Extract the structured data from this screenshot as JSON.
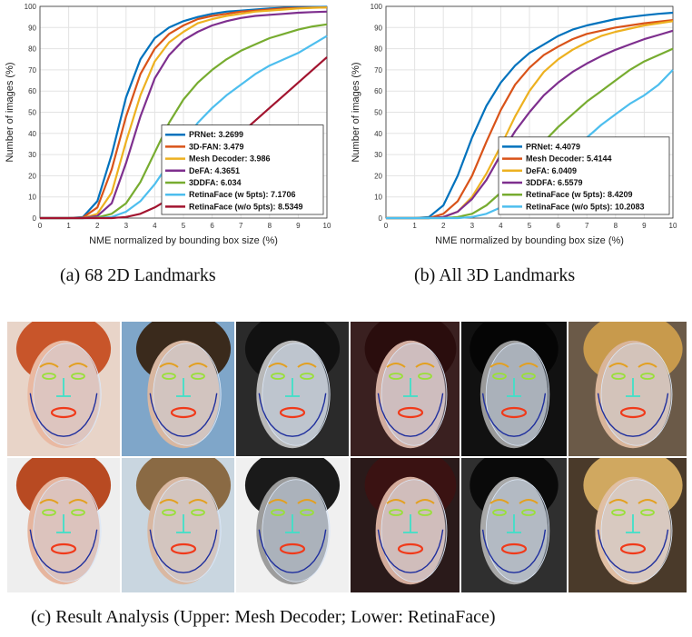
{
  "chart_data": [
    {
      "type": "line",
      "panel": "a",
      "xlabel": "NME normalized by bounding box size (%)",
      "ylabel": "Number of images (%)",
      "xlim": [
        0,
        10
      ],
      "ylim": [
        0,
        100
      ],
      "xticks": [
        "0",
        "1",
        "2",
        "3",
        "4",
        "5",
        "6",
        "7",
        "8",
        "9",
        "10"
      ],
      "yticks": [
        "0",
        "10",
        "20",
        "30",
        "40",
        "50",
        "60",
        "70",
        "80",
        "90",
        "100"
      ],
      "grid": true,
      "legend_position": "bottom-right",
      "x": [
        0,
        0.5,
        1,
        1.5,
        2,
        2.5,
        3,
        3.5,
        4,
        4.5,
        5,
        5.5,
        6,
        6.5,
        7,
        7.5,
        8,
        8.5,
        9,
        9.5,
        10
      ],
      "series": [
        {
          "name": "PRNet: 3.2699",
          "color": "#0072BD",
          "values": [
            0,
            0,
            0,
            0.5,
            8,
            30,
            57,
            75,
            85,
            90,
            93,
            95,
            96.5,
            97.5,
            98,
            98.5,
            99,
            99.3,
            99.5,
            99.7,
            99.8
          ]
        },
        {
          "name": "3D-FAN: 3.479",
          "color": "#D95319",
          "values": [
            0,
            0,
            0,
            0.3,
            5,
            23,
            48,
            68,
            80,
            87,
            91,
            94,
            95.5,
            96.5,
            97.5,
            98,
            98.5,
            99,
            99.2,
            99.4,
            99.5
          ]
        },
        {
          "name": "Mesh Decoder: 3.986",
          "color": "#EDB120",
          "values": [
            0,
            0,
            0,
            0,
            2,
            12,
            36,
            58,
            74,
            83,
            88,
            92,
            94,
            95.5,
            96.5,
            97.5,
            98,
            98.5,
            99,
            99.3,
            99.5
          ]
        },
        {
          "name": "DeFA: 4.3651",
          "color": "#7E2F8E",
          "values": [
            0,
            0,
            0,
            0,
            1,
            7,
            26,
            48,
            66,
            77,
            84,
            88,
            91,
            93,
            94.5,
            95.5,
            96,
            96.5,
            97,
            97.3,
            97.5
          ]
        },
        {
          "name": "3DDFA: 6.034",
          "color": "#77AC30",
          "values": [
            0,
            0,
            0,
            0,
            0.3,
            2,
            7,
            17,
            31,
            45,
            56,
            64,
            70,
            75,
            79,
            82,
            85,
            87,
            89,
            90.5,
            91.5
          ]
        },
        {
          "name": "RetinaFace (w 5pts): 7.1706",
          "color": "#4DBEEE",
          "values": [
            0,
            0,
            0,
            0,
            0,
            0.5,
            3,
            8,
            16,
            26,
            36,
            45,
            52,
            58,
            63,
            68,
            72,
            75,
            78,
            82,
            86
          ]
        },
        {
          "name": "RetinaFace (w/o 5pts): 8.5349",
          "color": "#A2142F",
          "values": [
            0,
            0,
            0,
            0,
            0,
            0,
            0.5,
            2,
            5,
            9,
            14,
            20,
            27,
            33,
            40,
            46,
            52,
            58,
            64,
            70,
            76
          ]
        }
      ]
    },
    {
      "type": "line",
      "panel": "b",
      "xlabel": "NME normalized by bounding box size (%)",
      "ylabel": "Number of images (%)",
      "xlim": [
        0,
        10
      ],
      "ylim": [
        0,
        100
      ],
      "xticks": [
        "0",
        "1",
        "2",
        "3",
        "4",
        "5",
        "6",
        "7",
        "8",
        "9",
        "10"
      ],
      "yticks": [
        "0",
        "10",
        "20",
        "30",
        "40",
        "50",
        "60",
        "70",
        "80",
        "90",
        "100"
      ],
      "grid": true,
      "legend_position": "bottom-right",
      "x": [
        0,
        0.5,
        1,
        1.5,
        2,
        2.5,
        3,
        3.5,
        4,
        4.5,
        5,
        5.5,
        6,
        6.5,
        7,
        7.5,
        8,
        8.5,
        9,
        9.5,
        10
      ],
      "series": [
        {
          "name": "PRNet: 4.4079",
          "color": "#0072BD",
          "values": [
            0,
            0,
            0,
            0.5,
            6,
            20,
            38,
            53,
            64,
            72,
            78,
            82,
            86,
            89,
            91,
            92.5,
            94,
            95,
            95.8,
            96.5,
            97
          ]
        },
        {
          "name": "Mesh Decoder: 5.4144",
          "color": "#D95319",
          "values": [
            0,
            0,
            0,
            0,
            2,
            8,
            20,
            36,
            51,
            63,
            71,
            77,
            81,
            84.5,
            87,
            88.5,
            90,
            91,
            92,
            92.8,
            93.5
          ]
        },
        {
          "name": "DeFA: 6.0409",
          "color": "#EDB120",
          "values": [
            0,
            0,
            0,
            0,
            0.5,
            3,
            10,
            21,
            34,
            48,
            60,
            69,
            75,
            79.5,
            83,
            86,
            88,
            89.5,
            91,
            92,
            93
          ]
        },
        {
          "name": "3DDFA: 6.5579",
          "color": "#7E2F8E",
          "values": [
            0,
            0,
            0,
            0,
            0.5,
            3,
            9,
            18,
            30,
            41,
            50,
            58,
            64,
            69,
            73,
            76.5,
            79.5,
            82,
            84.5,
            86.5,
            88.5
          ]
        },
        {
          "name": "RetinaFace (w 5pts): 8.4209",
          "color": "#77AC30",
          "values": [
            0,
            0,
            0,
            0,
            0,
            0.5,
            2,
            6,
            12,
            20,
            28,
            36,
            43,
            49,
            55,
            60,
            65,
            70,
            74,
            77,
            80
          ]
        },
        {
          "name": "RetinaFace (w/o 5pts): 10.2083",
          "color": "#4DBEEE",
          "values": [
            0,
            0,
            0,
            0,
            0,
            0,
            0.5,
            2,
            5,
            10,
            16,
            22,
            28,
            33,
            38,
            44,
            49,
            54,
            58,
            63,
            70
          ]
        }
      ]
    }
  ],
  "captions": {
    "a": "(a)  68 2D Landmarks",
    "b": "(b)  All 3D Landmarks",
    "c": "(c)  Result Analysis (Upper: Mesh Decoder; Lower: RetinaFace)"
  },
  "faces": [
    {
      "bg": "#e8d4c8",
      "skin": "#e9b9a2",
      "hair": "#c8552a"
    },
    {
      "bg": "#7fa6c9",
      "skin": "#d8b7a1",
      "hair": "#3a2a1c"
    },
    {
      "bg": "#2a2a2a",
      "skin": "#b8b8b8",
      "hair": "#111111"
    },
    {
      "bg": "#3a2020",
      "skin": "#d2ada0",
      "hair": "#2a0d0d"
    },
    {
      "bg": "#111111",
      "skin": "#9a9a9a",
      "hair": "#050505"
    },
    {
      "bg": "#6b5a48",
      "skin": "#d9b59a",
      "hair": "#c89a4c"
    },
    {
      "bg": "#eeeeee",
      "skin": "#e6b59e",
      "hair": "#b84a22"
    },
    {
      "bg": "#c9d6e0",
      "skin": "#d9b8a2",
      "hair": "#8a6a44"
    },
    {
      "bg": "#f0f0f0",
      "skin": "#9c9c9c",
      "hair": "#1a1a1a"
    },
    {
      "bg": "#2a1a1a",
      "skin": "#d4ac9c",
      "hair": "#3a1212"
    },
    {
      "bg": "#2f2f2f",
      "skin": "#a8a8a8",
      "hair": "#0a0a0a"
    },
    {
      "bg": "#4a3a2a",
      "skin": "#e0bfa4",
      "hair": "#d0a860"
    }
  ]
}
